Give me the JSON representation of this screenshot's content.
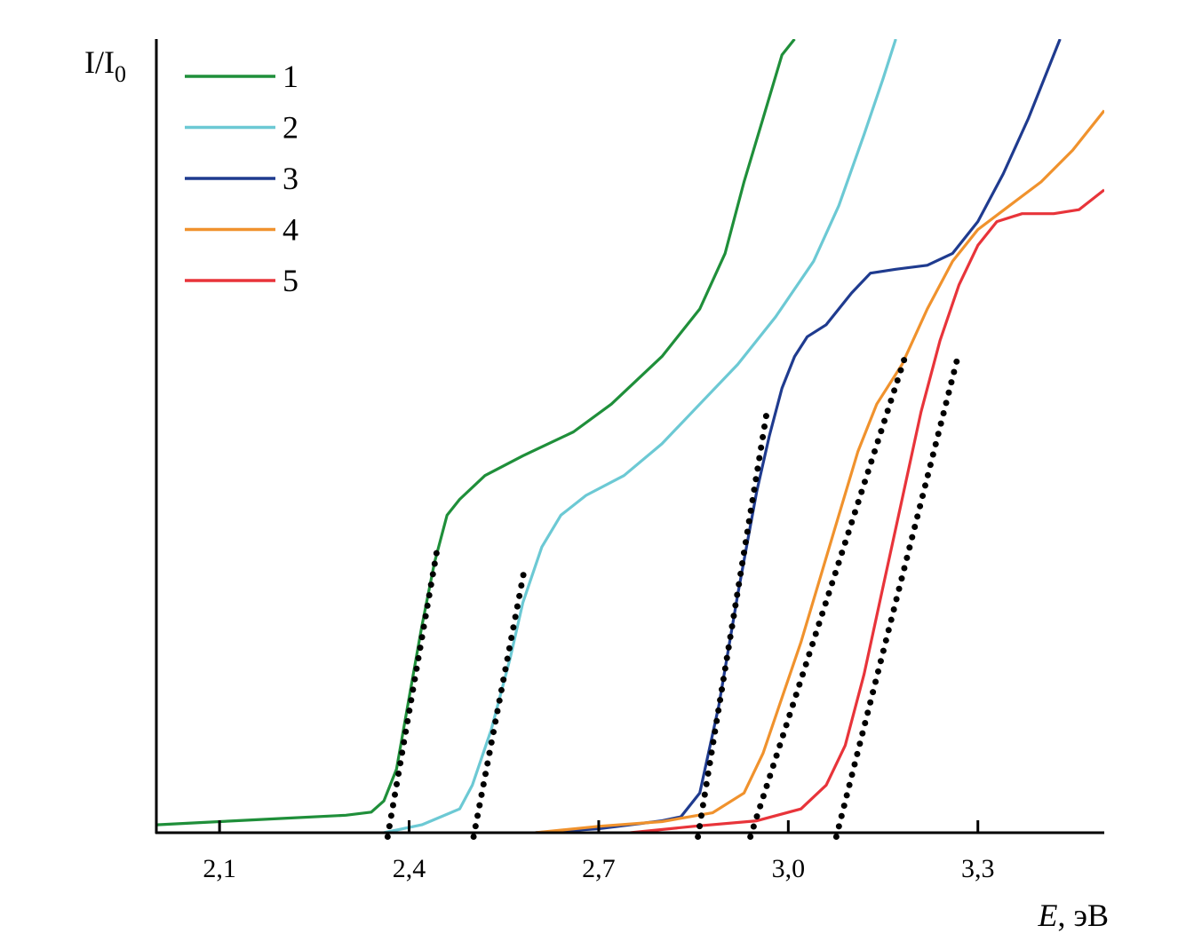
{
  "chart_data": {
    "type": "line",
    "ylabel_main": "I/I",
    "ylabel_sub": "0",
    "xlabel_italic": "E",
    "xlabel_rest": ", эВ",
    "xlim": [
      2.0,
      3.5
    ],
    "ylim": [
      0,
      1.0
    ],
    "x_ticks": [
      2.1,
      2.4,
      2.7,
      3.0,
      3.3
    ],
    "x_tick_labels": [
      "2,1",
      "2,4",
      "2,7",
      "3,0",
      "3,3"
    ],
    "legend_position": "top-left",
    "grid": false,
    "series": [
      {
        "name": "1",
        "color": "#1f8f3a",
        "points": [
          [
            2.0,
            0.01
          ],
          [
            2.1,
            0.014
          ],
          [
            2.2,
            0.018
          ],
          [
            2.3,
            0.022
          ],
          [
            2.34,
            0.026
          ],
          [
            2.36,
            0.04
          ],
          [
            2.38,
            0.08
          ],
          [
            2.4,
            0.17
          ],
          [
            2.42,
            0.26
          ],
          [
            2.44,
            0.34
          ],
          [
            2.46,
            0.4
          ],
          [
            2.48,
            0.42
          ],
          [
            2.52,
            0.45
          ],
          [
            2.58,
            0.475
          ],
          [
            2.66,
            0.505
          ],
          [
            2.72,
            0.54
          ],
          [
            2.8,
            0.6
          ],
          [
            2.86,
            0.66
          ],
          [
            2.9,
            0.73
          ],
          [
            2.93,
            0.82
          ],
          [
            2.96,
            0.9
          ],
          [
            2.99,
            0.98
          ],
          [
            3.01,
            1.0
          ]
        ]
      },
      {
        "name": "2",
        "color": "#6cc9d4",
        "points": [
          [
            2.36,
            0.0
          ],
          [
            2.42,
            0.01
          ],
          [
            2.48,
            0.03
          ],
          [
            2.5,
            0.06
          ],
          [
            2.53,
            0.13
          ],
          [
            2.56,
            0.22
          ],
          [
            2.58,
            0.29
          ],
          [
            2.61,
            0.36
          ],
          [
            2.64,
            0.4
          ],
          [
            2.68,
            0.425
          ],
          [
            2.74,
            0.45
          ],
          [
            2.8,
            0.49
          ],
          [
            2.86,
            0.54
          ],
          [
            2.92,
            0.59
          ],
          [
            2.98,
            0.65
          ],
          [
            3.04,
            0.72
          ],
          [
            3.08,
            0.79
          ],
          [
            3.12,
            0.88
          ],
          [
            3.15,
            0.95
          ],
          [
            3.17,
            1.0
          ]
        ]
      },
      {
        "name": "3",
        "color": "#1f3b8f",
        "points": [
          [
            2.6,
            0.0
          ],
          [
            2.7,
            0.005
          ],
          [
            2.8,
            0.015
          ],
          [
            2.83,
            0.02
          ],
          [
            2.86,
            0.05
          ],
          [
            2.89,
            0.16
          ],
          [
            2.92,
            0.3
          ],
          [
            2.95,
            0.43
          ],
          [
            2.97,
            0.5
          ],
          [
            2.99,
            0.56
          ],
          [
            3.01,
            0.6
          ],
          [
            3.03,
            0.625
          ],
          [
            3.06,
            0.64
          ],
          [
            3.1,
            0.68
          ],
          [
            3.13,
            0.705
          ],
          [
            3.17,
            0.71
          ],
          [
            3.22,
            0.715
          ],
          [
            3.26,
            0.73
          ],
          [
            3.3,
            0.77
          ],
          [
            3.34,
            0.83
          ],
          [
            3.38,
            0.9
          ],
          [
            3.43,
            1.0
          ]
        ]
      },
      {
        "name": "4",
        "color": "#f0922d",
        "points": [
          [
            2.6,
            0.0
          ],
          [
            2.7,
            0.008
          ],
          [
            2.8,
            0.014
          ],
          [
            2.88,
            0.025
          ],
          [
            2.93,
            0.05
          ],
          [
            2.96,
            0.1
          ],
          [
            2.99,
            0.17
          ],
          [
            3.02,
            0.24
          ],
          [
            3.05,
            0.32
          ],
          [
            3.08,
            0.4
          ],
          [
            3.11,
            0.48
          ],
          [
            3.14,
            0.54
          ],
          [
            3.18,
            0.59
          ],
          [
            3.22,
            0.66
          ],
          [
            3.26,
            0.72
          ],
          [
            3.3,
            0.76
          ],
          [
            3.35,
            0.79
          ],
          [
            3.4,
            0.82
          ],
          [
            3.45,
            0.86
          ],
          [
            3.5,
            0.91
          ]
        ]
      },
      {
        "name": "5",
        "color": "#e8343a",
        "points": [
          [
            2.75,
            0.0
          ],
          [
            2.85,
            0.008
          ],
          [
            2.95,
            0.015
          ],
          [
            3.02,
            0.03
          ],
          [
            3.06,
            0.06
          ],
          [
            3.09,
            0.11
          ],
          [
            3.12,
            0.2
          ],
          [
            3.15,
            0.31
          ],
          [
            3.18,
            0.42
          ],
          [
            3.21,
            0.53
          ],
          [
            3.24,
            0.62
          ],
          [
            3.27,
            0.69
          ],
          [
            3.3,
            0.74
          ],
          [
            3.33,
            0.77
          ],
          [
            3.37,
            0.78
          ],
          [
            3.42,
            0.78
          ],
          [
            3.46,
            0.785
          ],
          [
            3.5,
            0.81
          ]
        ]
      }
    ],
    "tangent_lines": [
      {
        "series": "1",
        "from": [
          2.366,
          -0.005
        ],
        "to": [
          2.445,
          0.36
        ]
      },
      {
        "series": "2",
        "from": [
          2.502,
          -0.005
        ],
        "to": [
          2.582,
          0.33
        ]
      },
      {
        "series": "3",
        "from": [
          2.857,
          -0.005
        ],
        "to": [
          2.966,
          0.53
        ]
      },
      {
        "series": "4",
        "from": [
          2.94,
          -0.005
        ],
        "to": [
          3.185,
          0.6
        ]
      },
      {
        "series": "5",
        "from": [
          3.076,
          -0.005
        ],
        "to": [
          3.27,
          0.605
        ]
      }
    ]
  }
}
